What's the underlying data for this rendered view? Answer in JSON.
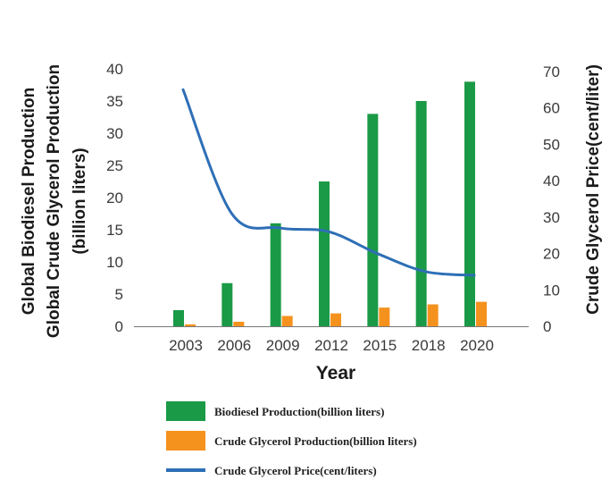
{
  "colors": {
    "biodiesel": "#1a9a46",
    "glycerol": "#f5921e",
    "price": "#2e6fb6",
    "axis": "#777777"
  },
  "chart_data": {
    "type": "bar",
    "categories": [
      "2003",
      "2006",
      "2009",
      "2012",
      "2015",
      "2018",
      "2020"
    ],
    "left_axis": {
      "label_lines": [
        "Global Biodiesel Production",
        "Global Crude Glycerol Production",
        "(billion liters)"
      ],
      "ylim": [
        0,
        40
      ],
      "ticks": [
        0,
        5,
        10,
        15,
        20,
        25,
        30,
        35,
        40
      ]
    },
    "right_axis": {
      "label": "Crude Glycerol Price(cent/liter)",
      "ylim": [
        0,
        70
      ],
      "ticks": [
        0,
        10,
        20,
        30,
        40,
        50,
        60,
        70
      ]
    },
    "xlabel": "Year",
    "series": [
      {
        "name": "Biodiesel Production(billion  liters)",
        "type": "bar",
        "axis": "left",
        "values": [
          2.5,
          6.7,
          16,
          22.5,
          33,
          35,
          38
        ]
      },
      {
        "name": "Crude Glycerol Production(billion  liters)",
        "type": "bar",
        "axis": "left",
        "values": [
          0.3,
          0.7,
          1.6,
          2,
          2.9,
          3.4,
          3.8
        ]
      },
      {
        "name": "Crude Glycerol Price(cent/liters)",
        "type": "line",
        "axis": "right",
        "values": [
          65,
          31,
          27,
          26,
          20,
          15,
          14
        ]
      }
    ],
    "grid": false,
    "legend_position": "bottom"
  }
}
